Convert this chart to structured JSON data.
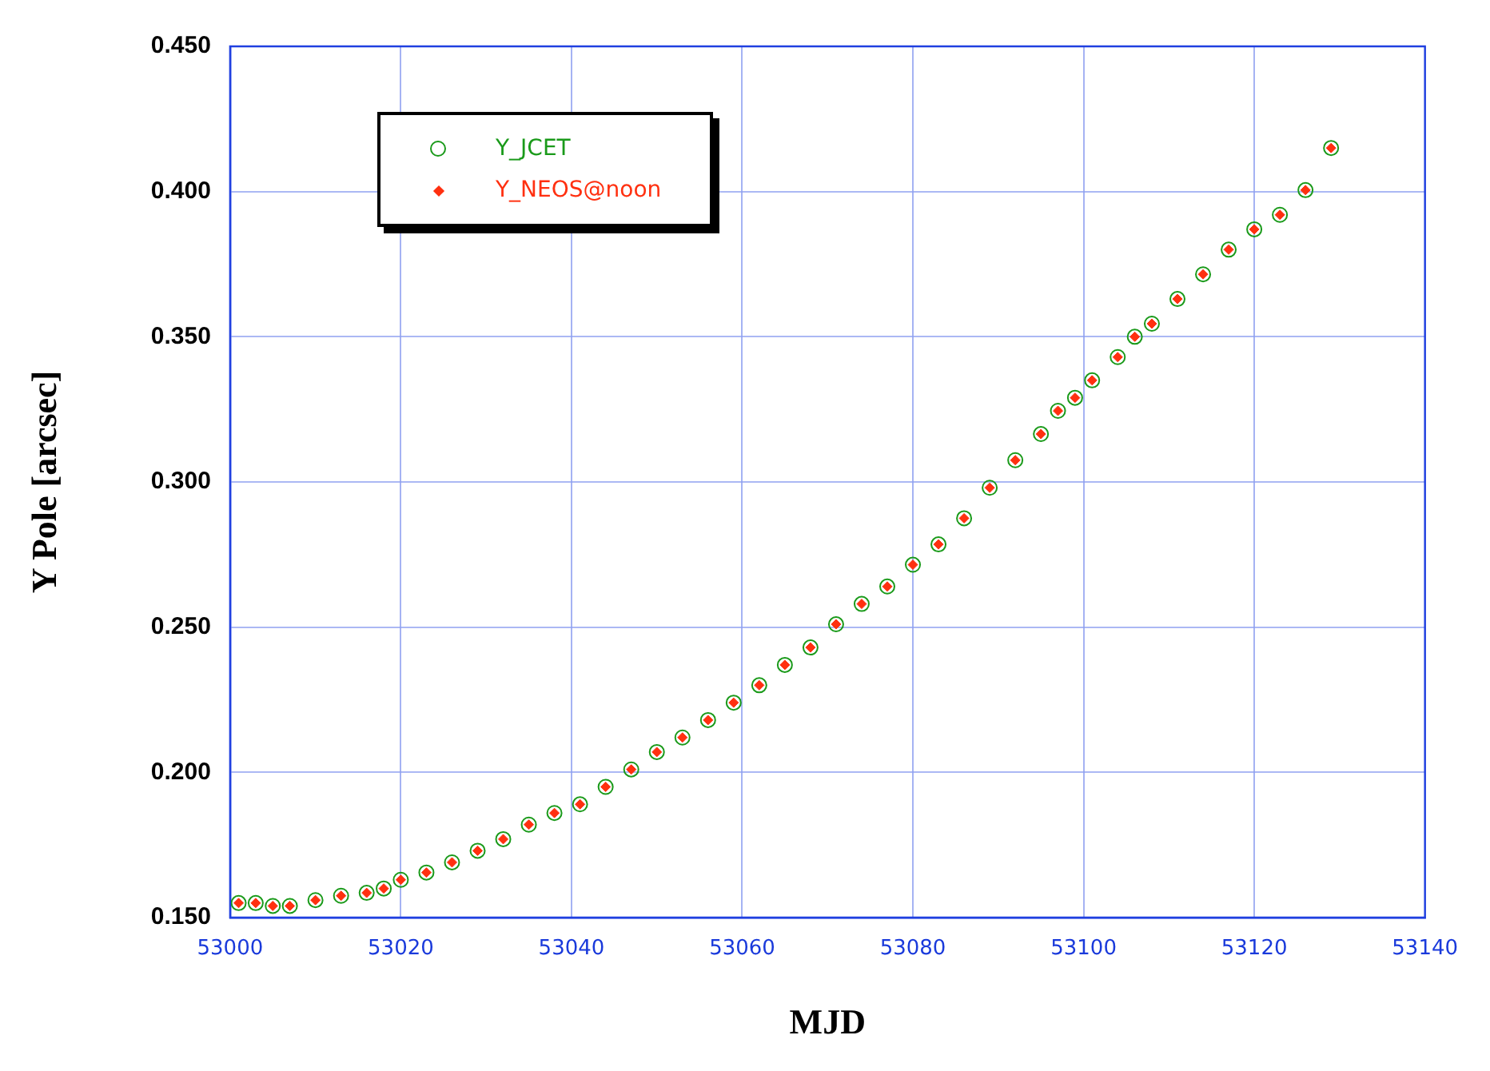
{
  "chart_data": {
    "type": "scatter",
    "xlabel": "MJD",
    "ylabel": "Y Pole [arcsec]",
    "xlim": [
      53000,
      53140
    ],
    "xticks": [
      53000,
      53020,
      53040,
      53060,
      53080,
      53100,
      53120,
      53140
    ],
    "ylim": [
      0.15,
      0.45
    ],
    "yticks": [
      {
        "value": 0.15,
        "label": "0.150"
      },
      {
        "value": 0.2,
        "label": "0.200"
      },
      {
        "value": 0.25,
        "label": "0.250"
      },
      {
        "value": 0.3,
        "label": "0.300"
      },
      {
        "value": 0.35,
        "label": "0.350"
      },
      {
        "value": 0.4,
        "label": "0.400"
      },
      {
        "value": 0.45,
        "label": "0.450"
      }
    ],
    "grid": true,
    "legend": "top left",
    "x": [
      53001,
      53003,
      53005,
      53007,
      53010,
      53013,
      53016,
      53018,
      53020,
      53023,
      53026,
      53029,
      53032,
      53035,
      53038,
      53041,
      53044,
      53047,
      53050,
      53053,
      53056,
      53059,
      53062,
      53065,
      53068,
      53071,
      53074,
      53077,
      53080,
      53083,
      53086,
      53089,
      53092,
      53095,
      53097,
      53099,
      53101,
      53104,
      53106,
      53108,
      53111,
      53114,
      53117,
      53120,
      53123,
      53126,
      53129
    ],
    "series": [
      {
        "name": "Y_JCET",
        "color": "#1a9a1a",
        "marker": "circle",
        "values": [
          0.155,
          0.155,
          0.154,
          0.154,
          0.156,
          0.1575,
          0.1585,
          0.16,
          0.163,
          0.1655,
          0.169,
          0.173,
          0.177,
          0.182,
          0.186,
          0.189,
          0.195,
          0.201,
          0.207,
          0.212,
          0.218,
          0.224,
          0.23,
          0.237,
          0.243,
          0.251,
          0.258,
          0.264,
          0.2715,
          0.2785,
          0.2875,
          0.298,
          0.3075,
          0.3165,
          0.3245,
          0.329,
          0.335,
          0.343,
          0.35,
          0.3545,
          0.363,
          0.3715,
          0.38,
          0.387,
          0.392,
          0.4005,
          0.415
        ]
      },
      {
        "name": "Y_NEOS@noon",
        "color": "#ff3010",
        "marker": "diamond",
        "values": [
          0.155,
          0.155,
          0.154,
          0.154,
          0.156,
          0.1575,
          0.1585,
          0.16,
          0.163,
          0.1655,
          0.169,
          0.173,
          0.177,
          0.182,
          0.186,
          0.189,
          0.195,
          0.201,
          0.207,
          0.212,
          0.218,
          0.224,
          0.23,
          0.237,
          0.243,
          0.251,
          0.258,
          0.264,
          0.2715,
          0.2785,
          0.2875,
          0.298,
          0.3075,
          0.3165,
          0.3245,
          0.329,
          0.335,
          0.343,
          0.35,
          0.3545,
          0.363,
          0.3715,
          0.38,
          0.387,
          0.392,
          0.4005,
          0.415
        ]
      }
    ]
  }
}
